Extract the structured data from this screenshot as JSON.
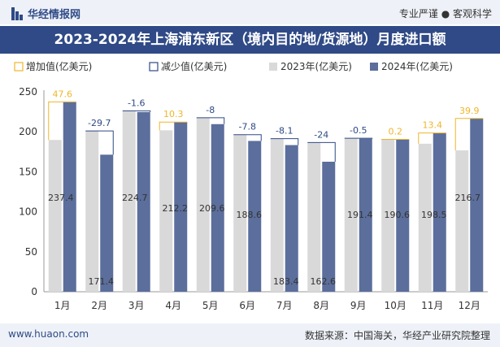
{
  "header": {
    "brand_name": "华经情报网",
    "tagline": "专业严谨 ● 客观科学",
    "title": "2023-2024年上海浦东新区（境内目的地/货源地）月度进口额"
  },
  "footer": {
    "url": "www.huaon.com",
    "source": "数据来源：中国海关，华经产业研究院整理"
  },
  "colors": {
    "bar2023": "#d9d9d9",
    "bar2024": "#5b6e9c",
    "increase": "#f0b62a",
    "decrease": "#2f4a86",
    "brand": "#2f4a86"
  },
  "chart_data": {
    "type": "bar",
    "categories": [
      "1月",
      "2月",
      "3月",
      "4月",
      "5月",
      "6月",
      "7月",
      "8月",
      "9月",
      "10月",
      "11月",
      "12月"
    ],
    "series": [
      {
        "name": "2023年(亿美元)",
        "values": [
          189.8,
          201.1,
          226.3,
          201.9,
          217.6,
          196.4,
          191.5,
          186.6,
          191.9,
          190.4,
          185.1,
          176.8
        ]
      },
      {
        "name": "2024年(亿美元)",
        "values": [
          237.4,
          171.4,
          224.7,
          212.2,
          209.6,
          188.6,
          183.4,
          162.6,
          191.4,
          190.6,
          198.5,
          216.7
        ]
      }
    ],
    "changes": [
      47.6,
      -29.7,
      -1.6,
      10.3,
      -8,
      -7.8,
      -8.1,
      -24,
      -0.5,
      0.2,
      13.4,
      39.9
    ],
    "legend": [
      "增加值(亿美元)",
      "减少值(亿美元)",
      "2023年(亿美元)",
      "2024年(亿美元)"
    ],
    "ylim": [
      0,
      250
    ],
    "yticks": [
      0,
      50,
      100,
      150,
      200,
      250
    ],
    "legend_position": "top-left",
    "grid": true
  }
}
